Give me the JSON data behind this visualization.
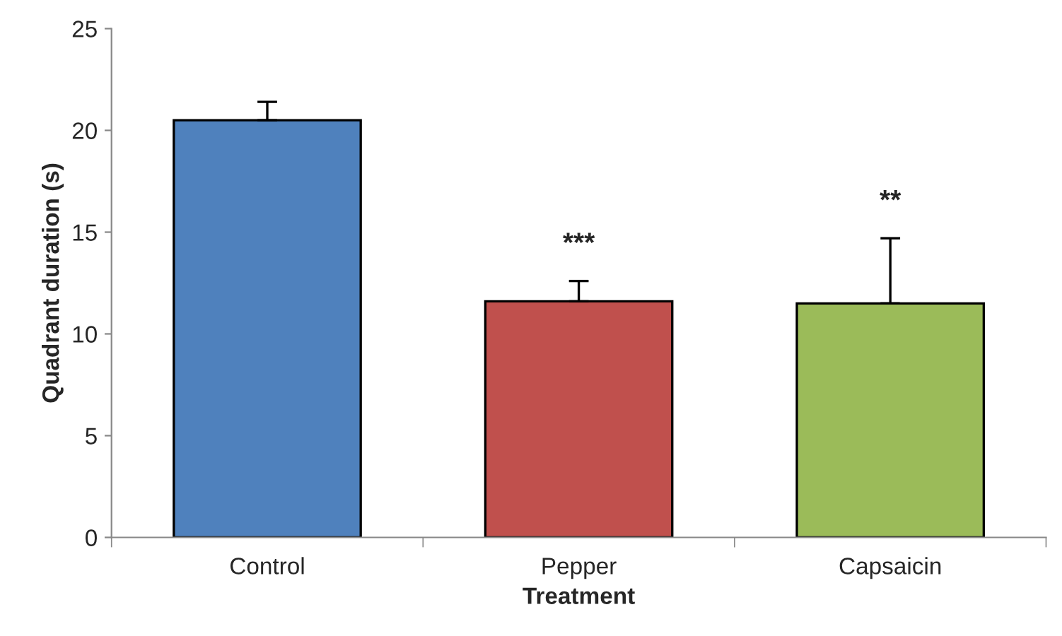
{
  "chart_data": {
    "type": "bar",
    "xlabel": "Treatment",
    "ylabel": "Quadrant duration (s)",
    "categories": [
      "Control",
      "Pepper",
      "Capsaicin"
    ],
    "values": [
      20.5,
      11.6,
      11.5
    ],
    "colors": [
      "#4f81bd",
      "#c0504d",
      "#9bbb59"
    ],
    "errors": [
      [
        20.5,
        21.4
      ],
      [
        11.6,
        12.6
      ],
      [
        11.5,
        14.7
      ]
    ],
    "ylim": [
      0,
      25
    ],
    "yticks": [
      0,
      5,
      10,
      15,
      20,
      25
    ],
    "grid": false,
    "legend": false,
    "annotations": [
      "***",
      "**"
    ]
  }
}
